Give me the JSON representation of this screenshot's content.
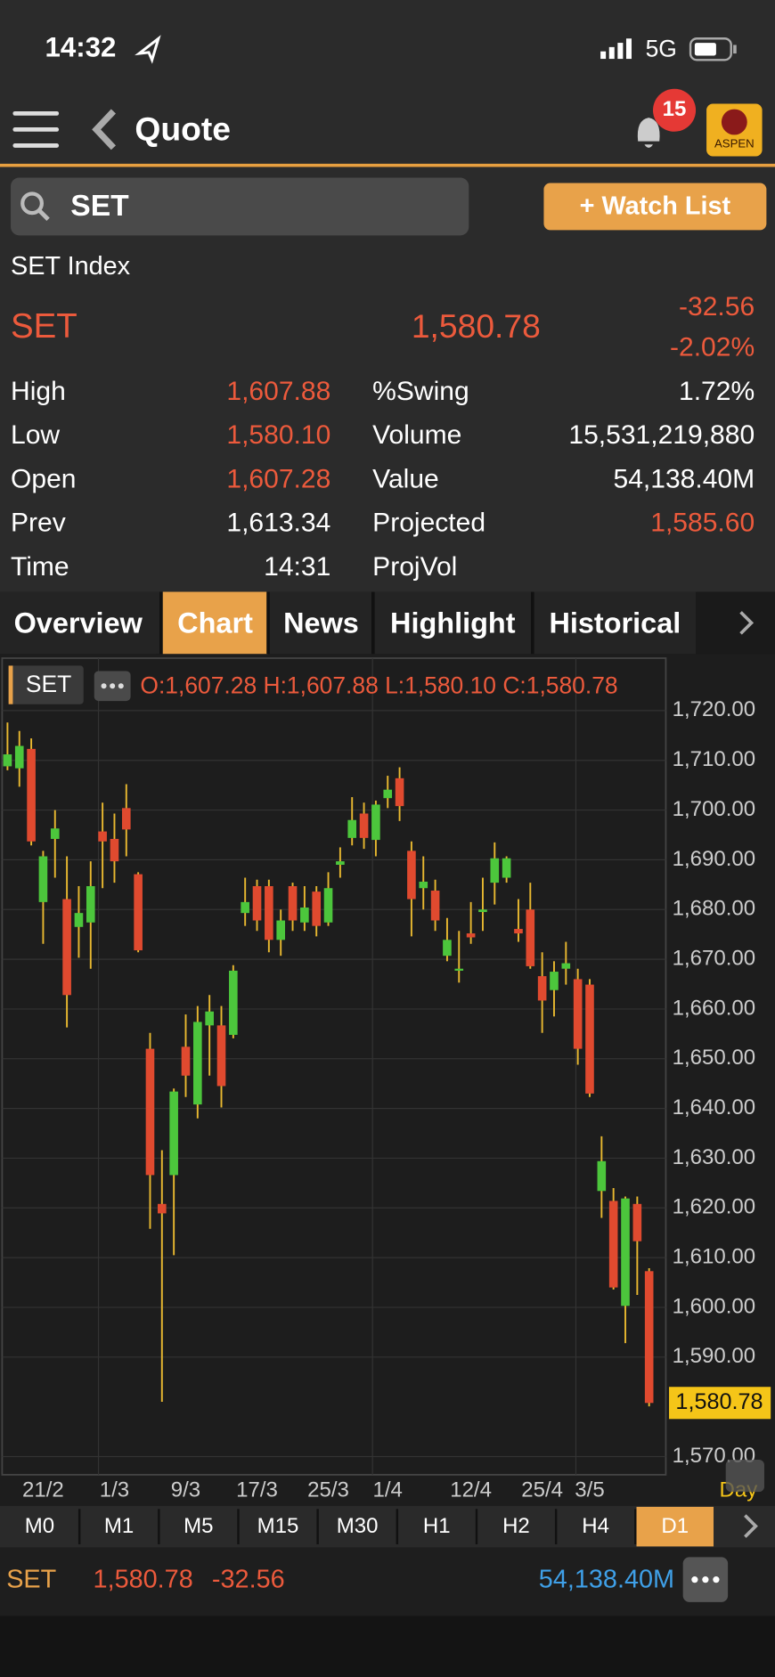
{
  "status": {
    "time": "14:32",
    "network": "5G"
  },
  "nav": {
    "title": "Quote",
    "badge": "15",
    "logo": "ASPEN"
  },
  "search": {
    "query": "SET",
    "button": "+ Watch List"
  },
  "quote": {
    "name": "SET Index",
    "symbol": "SET",
    "last": "1,580.78",
    "change": "-32.56",
    "change_pct": "-2.02%"
  },
  "stats": [
    [
      {
        "label": "High",
        "value": "1,607.88",
        "color": "#ec5a3c"
      },
      {
        "label": "%Swing",
        "value": "1.72%",
        "color": "#ffffff"
      }
    ],
    [
      {
        "label": "Low",
        "value": "1,580.10",
        "color": "#ec5a3c"
      },
      {
        "label": "Volume",
        "value": "15,531,219,880",
        "color": "#ffffff"
      }
    ],
    [
      {
        "label": "Open",
        "value": "1,607.28",
        "color": "#ec5a3c"
      },
      {
        "label": "Value",
        "value": "54,138.40M",
        "color": "#ffffff"
      }
    ],
    [
      {
        "label": "Prev",
        "value": "1,613.34",
        "color": "#ffffff"
      },
      {
        "label": "Projected",
        "value": "1,585.60",
        "color": "#ec5a3c"
      }
    ],
    [
      {
        "label": "Time",
        "value": "14:31",
        "color": "#ffffff"
      },
      {
        "label": "ProjVol"
      }
    ]
  ],
  "tabs": [
    "Overview",
    "Chart",
    "News",
    "Highlight",
    "Historical"
  ],
  "active_tab": 1,
  "chart_data": {
    "type": "candlestick",
    "symbol": "SET",
    "legend": "O:1,607.28 H:1,607.88 L:1,580.10 C:1,580.78",
    "period": "Day",
    "categories": [
      null,
      null,
      null,
      "21/2",
      null,
      null,
      null,
      null,
      null,
      "1/3",
      null,
      null,
      null,
      null,
      null,
      "9/3",
      null,
      null,
      null,
      null,
      null,
      "17/3",
      null,
      null,
      null,
      null,
      null,
      "25/3",
      null,
      null,
      null,
      null,
      "1/4",
      null,
      null,
      null,
      null,
      null,
      null,
      "12/4",
      null,
      null,
      null,
      null,
      null,
      "25/4",
      null,
      null,
      null,
      "3/5",
      null,
      null,
      null,
      null,
      null
    ],
    "open": [
      1708.8,
      1708.4,
      1712.3,
      1681.5,
      1694.2,
      1682.1,
      1676.5,
      1677.4,
      1695.7,
      1694.2,
      1700.4,
      1687.1,
      1652.0,
      1620.8,
      1626.6,
      1652.4,
      1640.8,
      1656.7,
      1656.7,
      1654.8,
      1679.3,
      1684.7,
      1684.7,
      1673.9,
      1684.7,
      1677.4,
      1683.6,
      1677.4,
      1689.0,
      1694.4,
      1699.3,
      1694.0,
      1702.4,
      1706.4,
      1691.8,
      1684.3,
      1683.8,
      1670.7,
      1667.7,
      1675.2,
      1679.5,
      1685.4,
      1686.4,
      1676.1,
      1680.0,
      1666.6,
      1663.8,
      1668.1,
      1666.0,
      1664.9,
      1623.4,
      1621.4,
      1600.3,
      1620.8,
      1607.28
    ],
    "high": [
      1717.6,
      1715.9,
      1714.4,
      1691.8,
      1700.0,
      1690.7,
      1684.7,
      1689.7,
      1701.5,
      1699.3,
      1705.2,
      1687.5,
      1655.2,
      1631.6,
      1644.0,
      1658.9,
      1660.6,
      1662.8,
      1660.6,
      1668.8,
      1686.4,
      1686.0,
      1686.0,
      1680.0,
      1685.4,
      1684.7,
      1684.7,
      1687.5,
      1692.5,
      1702.6,
      1701.5,
      1701.9,
      1706.9,
      1708.6,
      1693.7,
      1690.7,
      1686.0,
      1678.3,
      1675.7,
      1681.5,
      1686.4,
      1693.5,
      1690.7,
      1682.1,
      1685.4,
      1671.4,
      1669.6,
      1673.5,
      1668.1,
      1666.0,
      1634.4,
      1624.0,
      1622.3,
      1622.3,
      1607.88
    ],
    "low": [
      1708.0,
      1704.7,
      1692.9,
      1673.1,
      1686.4,
      1656.3,
      1670.3,
      1668.1,
      1684.3,
      1685.4,
      1690.7,
      1671.4,
      1615.8,
      1581.0,
      1610.5,
      1642.3,
      1638.0,
      1646.6,
      1640.2,
      1654.1,
      1676.7,
      1675.7,
      1671.4,
      1670.7,
      1675.7,
      1675.7,
      1674.6,
      1676.7,
      1686.4,
      1692.9,
      1692.2,
      1690.7,
      1700.4,
      1697.8,
      1674.6,
      1680.0,
      1675.7,
      1669.6,
      1665.3,
      1673.1,
      1675.7,
      1681.0,
      1685.4,
      1673.5,
      1668.1,
      1655.2,
      1658.5,
      1664.9,
      1648.8,
      1642.3,
      1618.0,
      1603.6,
      1592.8,
      1602.5,
      1580.1
    ],
    "close": [
      1711.2,
      1712.9,
      1693.7,
      1690.7,
      1696.3,
      1662.8,
      1679.3,
      1684.7,
      1693.7,
      1689.7,
      1696.1,
      1671.8,
      1626.6,
      1618.9,
      1643.4,
      1646.6,
      1657.4,
      1659.5,
      1644.5,
      1667.7,
      1681.5,
      1677.8,
      1673.9,
      1677.8,
      1677.8,
      1680.4,
      1676.7,
      1684.3,
      1689.7,
      1698.0,
      1694.4,
      1701.1,
      1704.1,
      1700.8,
      1682.1,
      1685.6,
      1677.8,
      1673.9,
      1668.1,
      1674.4,
      1680.0,
      1690.3,
      1690.3,
      1675.2,
      1668.6,
      1661.7,
      1667.5,
      1669.2,
      1652.0,
      1643.0,
      1629.4,
      1604.0,
      1621.9,
      1613.3,
      1580.78
    ],
    "up_color": "#4cc63c",
    "down_color": "#e04a2f",
    "wick_color": "#e8b830",
    "ylim": [
      1566,
      1721
    ],
    "yticks": [
      {
        "value": 1720,
        "label": "1,720.00"
      },
      {
        "value": 1710,
        "label": "1,710.00"
      },
      {
        "value": 1700,
        "label": "1,700.00"
      },
      {
        "value": 1690,
        "label": "1,690.00"
      },
      {
        "value": 1680,
        "label": "1,680.00"
      },
      {
        "value": 1670,
        "label": "1,670.00"
      },
      {
        "value": 1660,
        "label": "1,660.00"
      },
      {
        "value": 1650,
        "label": "1,650.00"
      },
      {
        "value": 1640,
        "label": "1,640.00"
      },
      {
        "value": 1630,
        "label": "1,630.00"
      },
      {
        "value": 1620,
        "label": "1,620.00"
      },
      {
        "value": 1610,
        "label": "1,610.00"
      },
      {
        "value": 1600,
        "label": "1,600.00"
      },
      {
        "value": 1590,
        "label": "1,590.00"
      },
      {
        "value": 1570,
        "label": "1,570.00"
      }
    ],
    "last_price": {
      "value": 1580.78,
      "label": "1,580.78"
    },
    "grid": true
  },
  "intervals": [
    "M0",
    "M1",
    "M5",
    "M15",
    "M30",
    "H1",
    "H2",
    "H4",
    "D1"
  ],
  "active_interval": 8,
  "bottom": {
    "symbol": "SET",
    "last": "1,580.78",
    "change": "-32.56",
    "value": "54,138.40M"
  }
}
